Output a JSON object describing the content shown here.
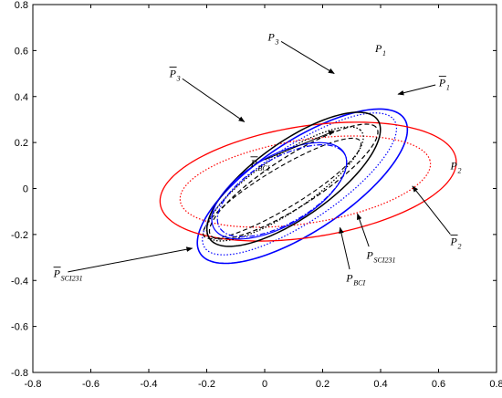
{
  "chart_data": {
    "type": "line",
    "title": "",
    "xlabel": "",
    "ylabel": "",
    "xlim": [
      -0.8,
      0.8
    ],
    "ylim": [
      -0.8,
      0.8
    ],
    "grid": false,
    "xticks": [
      "-0.8",
      "-0.6",
      "-0.4",
      "-0.2",
      "0",
      "0.2",
      "0.4",
      "0.6",
      "0.8"
    ],
    "yticks": [
      "0.8",
      "0.6",
      "0.4",
      "0.2",
      "0",
      "-0.2",
      "-0.4",
      "-0.6",
      "-0.8"
    ],
    "series": [
      {
        "name": "P1",
        "color": "#0000ff",
        "style": "solid",
        "width": 1.6,
        "ellipse": {
          "cx": 0.13,
          "cy": 0.01,
          "a": 0.46,
          "b": 0.18,
          "angle_deg": 42
        }
      },
      {
        "name": "P1 bar",
        "color": "#0000ff",
        "style": "dotted",
        "width": 1.2,
        "ellipse": {
          "cx": 0.12,
          "cy": 0.02,
          "a": 0.43,
          "b": 0.15,
          "angle_deg": 42
        }
      },
      {
        "name": "P2",
        "color": "#ff0000",
        "style": "solid",
        "width": 1.3,
        "ellipse": {
          "cx": 0.15,
          "cy": 0.03,
          "a": 0.52,
          "b": 0.24,
          "angle_deg": 12
        }
      },
      {
        "name": "P2 bar",
        "color": "#ff0000",
        "style": "dotted",
        "width": 1.2,
        "ellipse": {
          "cx": 0.14,
          "cy": 0.03,
          "a": 0.44,
          "b": 0.18,
          "angle_deg": 12
        }
      },
      {
        "name": "P3",
        "color": "#000000",
        "style": "solid",
        "width": 1.5,
        "ellipse": {
          "cx": 0.1,
          "cy": 0.04,
          "a": 0.39,
          "b": 0.15,
          "angle_deg": 44
        }
      },
      {
        "name": "P3 bar",
        "color": "#000000",
        "style": "dashed",
        "width": 1.2,
        "ellipse": {
          "cx": 0.1,
          "cy": 0.03,
          "a": 0.37,
          "b": 0.1,
          "angle_deg": 40
        }
      },
      {
        "name": "P SCI231",
        "color": "#000000",
        "style": "dotted",
        "width": 1.3,
        "ellipse": {
          "cx": 0.07,
          "cy": 0.02,
          "a": 0.35,
          "b": 0.11,
          "angle_deg": 42
        }
      },
      {
        "name": "P SCI231 bar",
        "color": "#000000",
        "style": "dashed",
        "width": 1.1,
        "ellipse": {
          "cx": 0.06,
          "cy": 0.0,
          "a": 0.34,
          "b": 0.08,
          "angle_deg": 38
        }
      },
      {
        "name": "P BCI",
        "color": "#0000ff",
        "style": "solid",
        "width": 1.2,
        "ellipse": {
          "cx": 0.05,
          "cy": -0.01,
          "a": 0.28,
          "b": 0.14,
          "angle_deg": 40
        }
      },
      {
        "name": "P BCI bar",
        "color": "#0000ff",
        "style": "dashdot",
        "width": 1.2,
        "ellipse": {
          "cx": 0.06,
          "cy": -0.01,
          "a": 0.27,
          "b": 0.13,
          "angle_deg": 40
        }
      }
    ],
    "annotations": [
      {
        "main": "P",
        "sub": "3",
        "bar": false,
        "text_at": [
          0.03,
          0.66
        ],
        "arrow_to": [
          0.24,
          0.5
        ]
      },
      {
        "main": "P",
        "sub": "3",
        "bar": true,
        "text_at": [
          -0.31,
          0.5
        ],
        "arrow_to": [
          -0.07,
          0.29
        ]
      },
      {
        "main": "P",
        "sub": "1",
        "bar": false,
        "text_at": [
          0.4,
          0.61
        ],
        "arrow_to": [
          0.4,
          0.61
        ]
      },
      {
        "main": "P",
        "sub": "1",
        "bar": true,
        "text_at": [
          0.62,
          0.46
        ],
        "arrow_to": [
          0.46,
          0.41
        ]
      },
      {
        "main": "P",
        "sub": "BCI",
        "bar": true,
        "text_at": [
          -0.03,
          0.11
        ],
        "arrow_to": [
          0.24,
          0.25
        ]
      },
      {
        "main": "P",
        "sub": "2",
        "bar": false,
        "text_at": [
          0.66,
          0.1
        ],
        "arrow_to": [
          0.66,
          0.1
        ]
      },
      {
        "main": "P",
        "sub": "2",
        "bar": true,
        "text_at": [
          0.66,
          -0.23
        ],
        "arrow_to": [
          0.51,
          0.01
        ]
      },
      {
        "main": "P",
        "sub": "SCI231",
        "bar": false,
        "text_at": [
          0.37,
          -0.29
        ],
        "arrow_to": [
          0.32,
          -0.11
        ]
      },
      {
        "main": "P",
        "sub": "BCI",
        "bar": false,
        "text_at": [
          0.3,
          -0.39
        ],
        "arrow_to": [
          0.26,
          -0.17
        ]
      },
      {
        "main": "P",
        "sub": "SCI231",
        "bar": true,
        "text_at": [
          -0.71,
          -0.37
        ],
        "arrow_to": [
          -0.25,
          -0.26
        ]
      }
    ]
  }
}
